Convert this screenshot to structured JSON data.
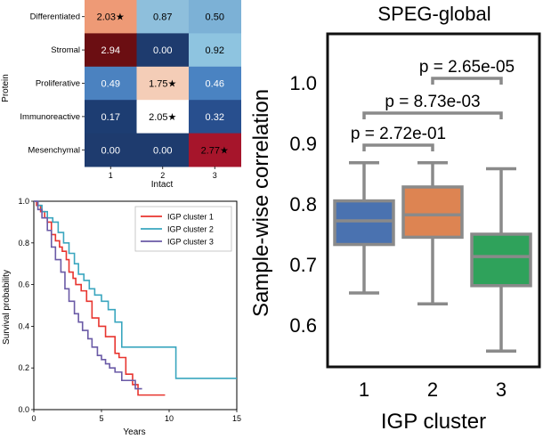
{
  "chart_data": [
    {
      "type": "heatmap",
      "rows": [
        "Differentiated",
        "Stromal",
        "Proliferative",
        "Immunoreactive",
        "Mesenchymal"
      ],
      "columns": [
        "1",
        "2",
        "3"
      ],
      "values": [
        [
          2.03,
          0.87,
          0.5
        ],
        [
          2.94,
          0.0,
          0.92
        ],
        [
          0.49,
          1.75,
          0.46
        ],
        [
          0.17,
          2.05,
          0.32
        ],
        [
          0.0,
          0.0,
          2.77
        ]
      ],
      "labels": [
        [
          "2.03★",
          "0.87",
          "0.50"
        ],
        [
          "2.94",
          "0.00",
          "0.92"
        ],
        [
          "0.49",
          "1.75★",
          "0.46"
        ],
        [
          "0.17",
          "2.05★",
          "0.32"
        ],
        [
          "0.00",
          "0.00",
          "2.77★"
        ]
      ],
      "cell_colors": [
        [
          "#ee9a76",
          "#8ebfdc",
          "#7cb1d6"
        ],
        [
          "#6b0e12",
          "#1e3b6e",
          "#8ec4e0"
        ],
        [
          "#4b82c0",
          "#f4cdb7",
          "#4a83c2"
        ],
        [
          "#1d3d72",
          "#ffffff",
          "#284f8e"
        ],
        [
          "#1e3b6e",
          "#1e3b6e",
          "#a6152b"
        ]
      ],
      "text_colors": [
        [
          "#000000",
          "#000000",
          "#000000"
        ],
        [
          "#ffffff",
          "#ffffff",
          "#000000"
        ],
        [
          "#ffffff",
          "#000000",
          "#ffffff"
        ],
        [
          "#ffffff",
          "#000000",
          "#ffffff"
        ],
        [
          "#ffffff",
          "#ffffff",
          "#000000"
        ]
      ],
      "xlabel": "Intact",
      "ylabel": "Protein"
    },
    {
      "type": "line",
      "xlabel": "Years",
      "ylabel": "Survival probability",
      "xlim": [
        0,
        15
      ],
      "ylim": [
        0,
        1.0
      ],
      "xticks": [
        "0",
        "5",
        "10",
        "15"
      ],
      "yticks": [
        "0.0",
        "0.2",
        "0.4",
        "0.6",
        "0.8",
        "1.0"
      ],
      "legend": "top-right",
      "series": [
        {
          "name": "IGP cluster 1",
          "color": "#e8352f",
          "x": [
            0,
            0.2,
            0.5,
            0.8,
            1.0,
            1.3,
            1.6,
            1.9,
            2.1,
            2.4,
            2.6,
            2.9,
            3.1,
            3.5,
            3.9,
            4.3,
            4.8,
            5.3,
            6.0,
            6.3,
            6.8,
            7.3,
            7.7,
            9.7
          ],
          "y": [
            1.0,
            0.98,
            0.95,
            0.92,
            0.9,
            0.84,
            0.81,
            0.78,
            0.76,
            0.72,
            0.66,
            0.63,
            0.6,
            0.57,
            0.52,
            0.44,
            0.4,
            0.35,
            0.27,
            0.25,
            0.17,
            0.12,
            0.07,
            0.07
          ]
        },
        {
          "name": "IGP cluster 2",
          "color": "#3aa6bf",
          "x": [
            0,
            0.3,
            0.6,
            1.0,
            1.4,
            1.8,
            2.2,
            2.6,
            3.0,
            3.3,
            3.7,
            4.1,
            4.5,
            5.0,
            5.5,
            6.0,
            6.5,
            10.5,
            15
          ],
          "y": [
            1.0,
            0.98,
            0.95,
            0.92,
            0.9,
            0.85,
            0.8,
            0.75,
            0.7,
            0.65,
            0.62,
            0.58,
            0.55,
            0.52,
            0.48,
            0.42,
            0.3,
            0.15,
            0.15
          ]
        },
        {
          "name": "IGP cluster 3",
          "color": "#6a5aa6",
          "x": [
            0,
            0.3,
            0.6,
            1.0,
            1.3,
            1.6,
            2.0,
            2.3,
            2.6,
            3.0,
            3.3,
            3.6,
            4.0,
            4.3,
            4.7,
            5.0,
            5.3,
            5.6,
            6.0,
            6.5,
            7.0,
            7.5,
            8.0
          ],
          "y": [
            1.0,
            0.96,
            0.92,
            0.86,
            0.78,
            0.72,
            0.66,
            0.58,
            0.52,
            0.46,
            0.42,
            0.38,
            0.34,
            0.3,
            0.26,
            0.24,
            0.22,
            0.2,
            0.18,
            0.14,
            0.14,
            0.1,
            0.1
          ]
        }
      ]
    },
    {
      "type": "box",
      "title": "SPEG-global",
      "xlabel": "IGP cluster",
      "ylabel": "Sample-wise correlation",
      "ylim": [
        0.55,
        1.07
      ],
      "yticks": [
        "0.6",
        "0.7",
        "0.8",
        "0.9",
        "1.0"
      ],
      "categories": [
        "1",
        "2",
        "3"
      ],
      "boxes": [
        {
          "label": "1",
          "color": "#4a72b0",
          "whisker_low": 0.653,
          "q1": 0.733,
          "median": 0.772,
          "q3": 0.805,
          "whisker_high": 0.868
        },
        {
          "label": "2",
          "color": "#dd8452",
          "whisker_low": 0.635,
          "q1": 0.745,
          "median": 0.782,
          "q3": 0.828,
          "whisker_high": 0.868
        },
        {
          "label": "3",
          "color": "#2fa25b",
          "whisker_low": 0.557,
          "q1": 0.665,
          "median": 0.713,
          "q3": 0.75,
          "whisker_high": 0.858
        }
      ],
      "annotations": [
        {
          "groups": [
            "1",
            "2"
          ],
          "text": "p = 2.72e-01"
        },
        {
          "groups": [
            "1",
            "3"
          ],
          "text": "p = 8.73e-03"
        },
        {
          "groups": [
            "2",
            "3"
          ],
          "text": "p = 2.65e-05"
        }
      ]
    }
  ]
}
